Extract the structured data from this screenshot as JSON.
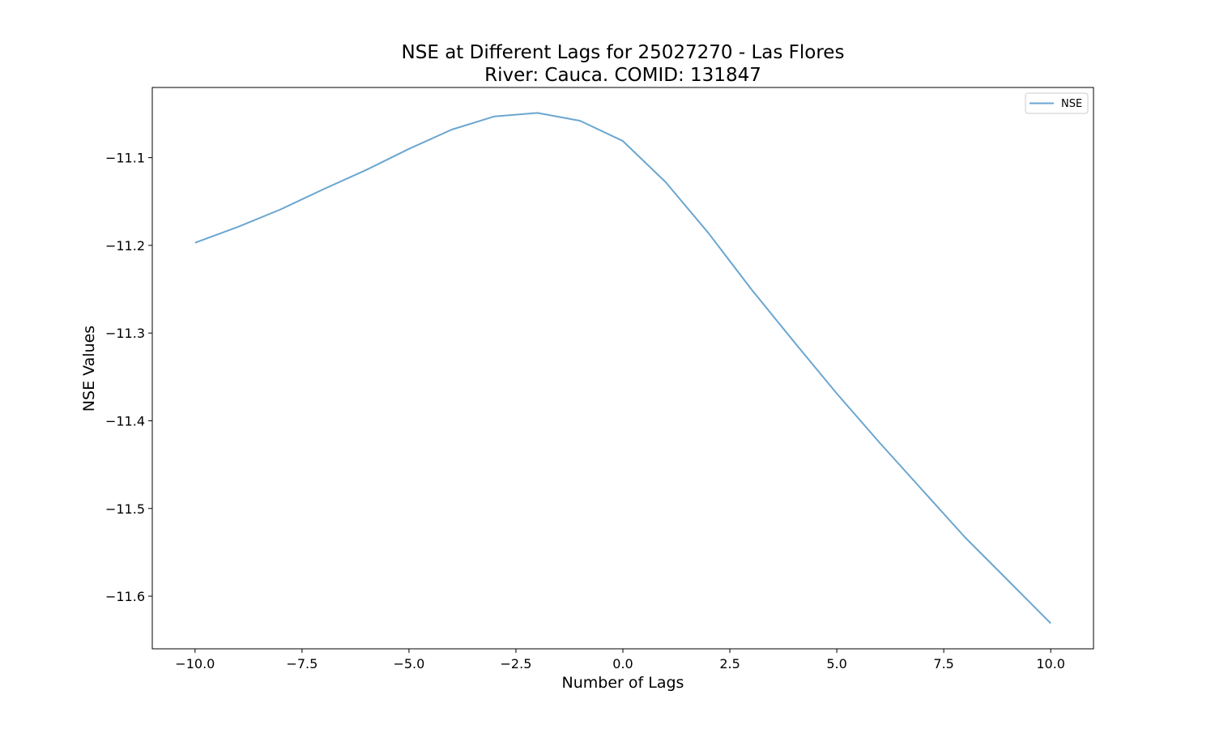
{
  "chart_data": {
    "type": "line",
    "title": [
      "NSE at Different Lags for 25027270 - Las Flores",
      "River: Cauca. COMID: 131847"
    ],
    "xlabel": "Number of Lags",
    "ylabel": "NSE Values",
    "xlim": [
      -11,
      11
    ],
    "ylim": [
      -11.66,
      -11.02
    ],
    "xticks": [
      -10.0,
      -7.5,
      -5.0,
      -2.5,
      0.0,
      2.5,
      5.0,
      7.5,
      10.0
    ],
    "xtick_labels": [
      "−10.0",
      "−7.5",
      "−5.0",
      "−2.5",
      "0.0",
      "2.5",
      "5.0",
      "7.5",
      "10.0"
    ],
    "yticks": [
      -11.1,
      -11.2,
      -11.3,
      -11.4,
      -11.5,
      -11.6
    ],
    "ytick_labels": [
      "−11.1",
      "−11.2",
      "−11.3",
      "−11.4",
      "−11.5",
      "−11.6"
    ],
    "grid": false,
    "legend_position": "top-right",
    "series": [
      {
        "name": "NSE",
        "color": "#6aa6d0",
        "x": [
          -10,
          -9,
          -8,
          -7,
          -6,
          -5,
          -4,
          -3,
          -2,
          -1,
          0,
          1,
          2,
          3,
          4,
          5,
          6,
          7,
          8,
          9,
          10
        ],
        "y": [
          -11.197,
          -11.179,
          -11.159,
          -11.136,
          -11.114,
          -11.09,
          -11.068,
          -11.053,
          -11.049,
          -11.058,
          -11.081,
          -11.128,
          -11.186,
          -11.25,
          -11.31,
          -11.369,
          -11.425,
          -11.479,
          -11.533,
          -11.582,
          -11.631
        ]
      }
    ]
  }
}
